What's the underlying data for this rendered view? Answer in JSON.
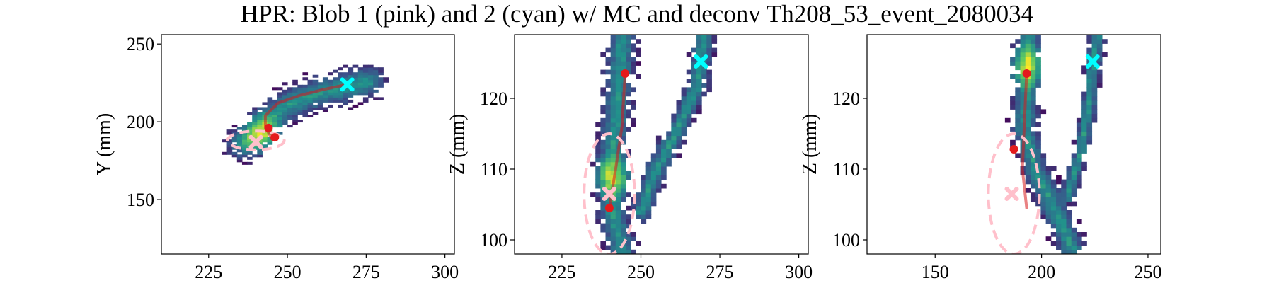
{
  "figure": {
    "title": "HPR: Blob 1 (pink) and 2 (cyan) w/ MC and deconv Th208_53_event_2080034"
  },
  "chart_data": [
    {
      "type": "heatmap",
      "panel": "XY projection",
      "xlabel": "",
      "ylabel": "Y (mm)",
      "xlim": [
        210,
        303
      ],
      "ylim": [
        115,
        256
      ],
      "xticks": [
        225,
        250,
        275,
        300
      ],
      "yticks": [
        150,
        200,
        250
      ],
      "blob_ellipses": [
        {
          "blob": "pink",
          "cx": 240,
          "cy": 188,
          "rx": 9,
          "ry": 6,
          "color": "#ffc0cb"
        }
      ],
      "markers": [
        {
          "blob": "pink",
          "shape": "x",
          "x": 240,
          "y": 187,
          "color": "#ffc0cb"
        },
        {
          "blob": "cyan",
          "shape": "x",
          "x": 269,
          "y": 224,
          "color": "#00ffff"
        },
        {
          "shape": "dot",
          "x": 244,
          "y": 196,
          "color": "#e41a1c"
        },
        {
          "shape": "dot",
          "x": 246,
          "y": 190,
          "color": "#e41a1c"
        }
      ],
      "mc_track": [
        [
          245,
          189
        ],
        [
          243,
          197
        ],
        [
          243,
          204
        ],
        [
          247,
          212
        ],
        [
          254,
          217
        ],
        [
          262,
          221
        ],
        [
          269,
          224
        ]
      ]
    },
    {
      "type": "heatmap",
      "panel": "XZ projection",
      "xlabel": "",
      "ylabel": "Z (mm)",
      "xlim": [
        210,
        303
      ],
      "ylim": [
        98,
        129
      ],
      "xticks": [
        225,
        250,
        275,
        300
      ],
      "yticks": [
        100,
        110,
        120
      ],
      "blob_ellipses": [
        {
          "blob": "pink",
          "cx": 240,
          "cy": 106.5,
          "rx": 8,
          "ry": 8.5,
          "color": "#ffc0cb"
        }
      ],
      "markers": [
        {
          "blob": "pink",
          "shape": "x",
          "x": 240,
          "y": 106.5,
          "color": "#ffc0cb"
        },
        {
          "blob": "cyan",
          "shape": "x",
          "x": 269,
          "y": 125.2,
          "color": "#00ffff"
        },
        {
          "shape": "dot",
          "x": 245,
          "y": 123.5,
          "color": "#e41a1c"
        },
        {
          "shape": "dot",
          "x": 240,
          "y": 104.5,
          "color": "#e41a1c"
        }
      ],
      "mc_track": [
        [
          240,
          104.5
        ],
        [
          242,
          110
        ],
        [
          244,
          116
        ],
        [
          245,
          123.5
        ]
      ]
    },
    {
      "type": "heatmap",
      "panel": "YZ projection",
      "xlabel": "",
      "ylabel": "Z (mm)",
      "xlim": [
        118,
        256
      ],
      "ylim": [
        98,
        129
      ],
      "xticks": [
        150,
        200,
        250
      ],
      "yticks": [
        100,
        110,
        120
      ],
      "blob_ellipses": [
        {
          "blob": "pink",
          "cx": 187,
          "cy": 106.5,
          "rx": 12,
          "ry": 8.5,
          "color": "#ffc0cb"
        }
      ],
      "markers": [
        {
          "blob": "pink",
          "shape": "x",
          "x": 186,
          "y": 106.5,
          "color": "#ffc0cb"
        },
        {
          "blob": "cyan",
          "shape": "x",
          "x": 224,
          "y": 125.2,
          "color": "#00ffff"
        },
        {
          "shape": "dot",
          "x": 193,
          "y": 123.5,
          "color": "#e41a1c"
        },
        {
          "shape": "dot",
          "x": 187,
          "y": 112.8,
          "color": "#e41a1c"
        }
      ],
      "mc_track": [
        [
          193,
          104.5
        ],
        [
          191,
          110
        ],
        [
          192,
          117
        ],
        [
          193,
          123.5
        ]
      ]
    }
  ]
}
